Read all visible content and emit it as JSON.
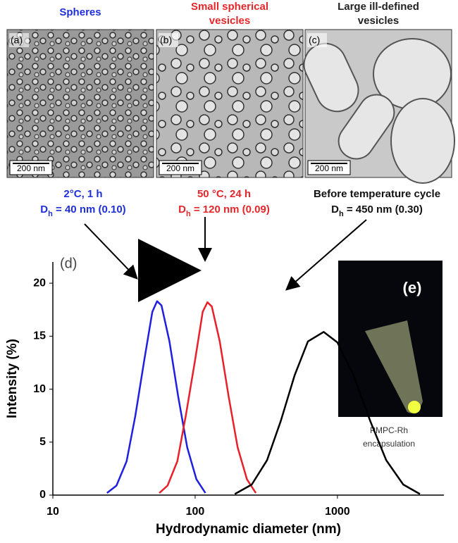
{
  "panels": [
    {
      "title": [
        "Spheres"
      ],
      "label": "(a)",
      "scale": "200 nm",
      "color": "#1f2fd8"
    },
    {
      "title": [
        "Small spherical",
        "vesicles"
      ],
      "label": "(b)",
      "scale": "200 nm",
      "color": "#e5262b"
    },
    {
      "title": [
        "Large ill-defined",
        "vesicles"
      ],
      "label": "(c)",
      "scale": "200 nm",
      "color": "#222222"
    }
  ],
  "annotations": [
    {
      "line1": "2°C, 1 h",
      "dh": [
        "D",
        "h",
        " = 40 nm (0.10)"
      ],
      "color": "#1f2fd8"
    },
    {
      "line1": "50 °C, 24 h",
      "dh": [
        "D",
        "h",
        " = 120 nm (0.09)"
      ],
      "color": "#e5262b"
    },
    {
      "line1": "Before temperature cycle",
      "dh": [
        "D",
        "h",
        " = 450 nm (0.30)"
      ],
      "color": "#111111"
    }
  ],
  "inset": {
    "label": "(e)",
    "caption": [
      "PMPC-Rh",
      "encapsulation"
    ]
  },
  "chart_data": {
    "type": "line",
    "panel_label": "(d)",
    "xlabel": "Hydrodynamic diameter (nm)",
    "ylabel": "Intensity (%)",
    "log_x": true,
    "xlim": [
      10,
      5600
    ],
    "xticks": [
      10,
      100,
      1000
    ],
    "ylim": [
      0,
      22
    ],
    "yticks": [
      0,
      5,
      10,
      15,
      20
    ],
    "series": [
      {
        "color": "#1f1fe0",
        "x": [
          24,
          28,
          33,
          38,
          44,
          50,
          54,
          58,
          66,
          76,
          88,
          102,
          118
        ],
        "values": [
          0.2,
          0.9,
          3.2,
          7.5,
          12.8,
          17.3,
          18.3,
          17.9,
          14.5,
          9.3,
          4.5,
          1.5,
          0.2
        ]
      },
      {
        "color": "#e8202a",
        "x": [
          56,
          64,
          75,
          86,
          100,
          113,
          122,
          131,
          149,
          172,
          199,
          231,
          267
        ],
        "values": [
          0.2,
          0.9,
          3.2,
          7.5,
          12.8,
          17.3,
          18.2,
          17.8,
          14.5,
          9.3,
          4.5,
          1.5,
          0.2
        ]
      },
      {
        "color": "#000000",
        "x": [
          190,
          250,
          320,
          400,
          500,
          620,
          800,
          1000,
          1300,
          1700,
          2200,
          2900,
          3800
        ],
        "values": [
          0.1,
          1.0,
          3.3,
          7.0,
          11.3,
          14.5,
          15.4,
          14.4,
          11.3,
          7.0,
          3.3,
          1.0,
          0.1
        ]
      }
    ]
  }
}
